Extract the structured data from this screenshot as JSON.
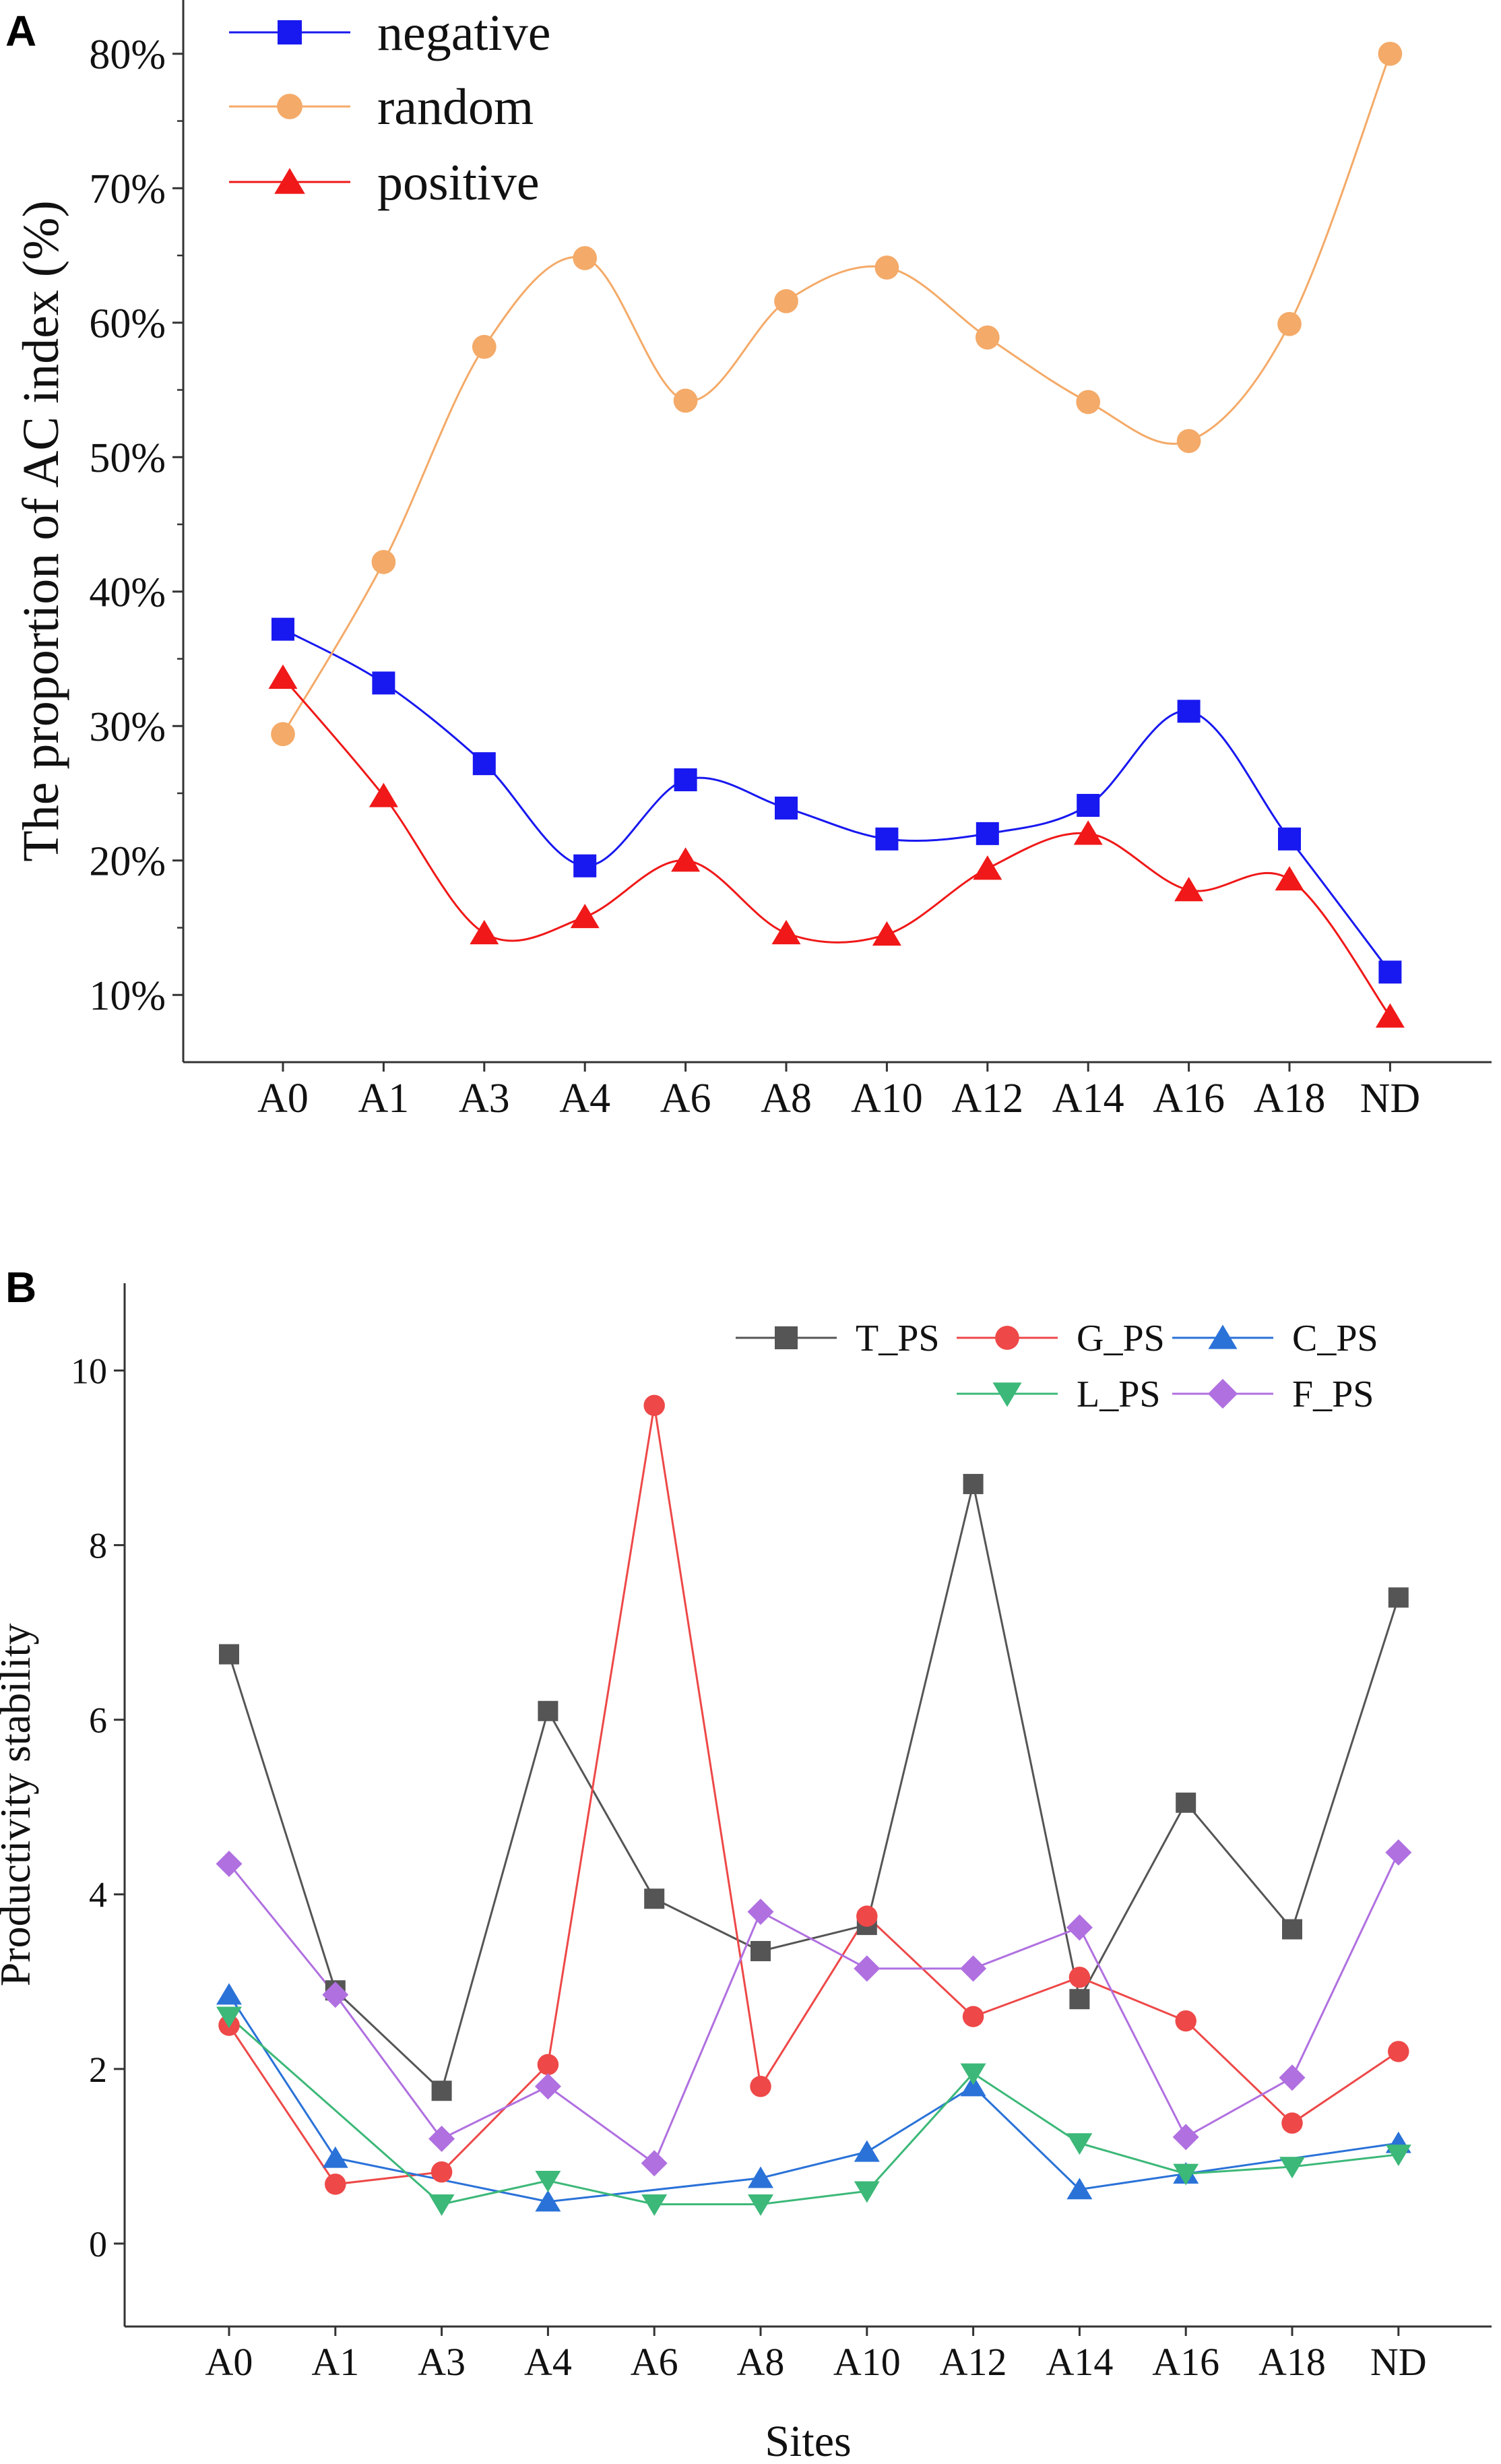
{
  "chart_data": [
    {
      "panel": "A",
      "type": "line",
      "categories": [
        "A0",
        "A1",
        "A3",
        "A4",
        "A6",
        "A8",
        "A10",
        "A12",
        "A14",
        "A16",
        "A18",
        "ND"
      ],
      "ylabel": "The proportion of  AC index (%)",
      "xlabel": "",
      "yticks": [
        "10%",
        "20%",
        "30%",
        "40%",
        "50%",
        "60%",
        "70%",
        "80%"
      ],
      "ylim": [
        5,
        84
      ],
      "smooth": true,
      "legend_position": "top-left",
      "series": [
        {
          "name": "negative",
          "marker": "square",
          "color": "#1818f0",
          "values": [
            37.2,
            33.2,
            27.2,
            19.6,
            26.0,
            23.9,
            21.6,
            22.0,
            24.1,
            31.1,
            21.6,
            11.7
          ]
        },
        {
          "name": "random",
          "marker": "circle",
          "color": "#f4aa68",
          "values": [
            29.4,
            42.2,
            58.2,
            64.8,
            54.2,
            61.6,
            64.1,
            58.9,
            54.1,
            51.2,
            59.9,
            80.0
          ]
        },
        {
          "name": "positive",
          "marker": "triangle-up",
          "color": "#f01818",
          "values": [
            33.6,
            24.8,
            14.6,
            15.8,
            20.0,
            14.6,
            14.5,
            19.4,
            22.0,
            17.8,
            18.6,
            8.4
          ]
        }
      ]
    },
    {
      "panel": "B",
      "type": "line",
      "categories": [
        "A0",
        "A1",
        "A3",
        "A4",
        "A6",
        "A8",
        "A10",
        "A12",
        "A14",
        "A16",
        "A18",
        "ND"
      ],
      "xlabel": "Sites",
      "ylabel": "Productivity stability",
      "yticks": [
        "0",
        "2",
        "4",
        "6",
        "8",
        "10"
      ],
      "ylim": [
        -0.95,
        11
      ],
      "smooth": false,
      "legend_position": "top-right",
      "series": [
        {
          "name": "T_PS",
          "marker": "square",
          "color": "#555555",
          "values": [
            6.75,
            2.9,
            1.75,
            6.1,
            3.95,
            3.35,
            3.65,
            8.7,
            2.8,
            5.05,
            3.6,
            7.4
          ]
        },
        {
          "name": "G_PS",
          "marker": "circle",
          "color": "#ee4848",
          "values": [
            2.5,
            0.68,
            0.82,
            2.05,
            9.6,
            1.8,
            3.75,
            2.6,
            3.05,
            2.55,
            1.38,
            2.2
          ]
        },
        {
          "name": "C_PS",
          "marker": "triangle-up",
          "color": "#2a72d8",
          "values": [
            2.85,
            0.98,
            null,
            0.48,
            null,
            0.75,
            1.05,
            1.8,
            0.62,
            0.8,
            null,
            1.15
          ]
        },
        {
          "name": "L_PS",
          "marker": "triangle-down",
          "color": "#3cb878",
          "values": [
            2.6,
            null,
            0.45,
            0.72,
            0.45,
            0.45,
            0.6,
            1.95,
            1.15,
            0.8,
            0.88,
            1.02
          ]
        },
        {
          "name": "F_PS",
          "marker": "diamond",
          "color": "#b070e0",
          "values": [
            4.35,
            2.85,
            1.2,
            1.8,
            0.92,
            3.8,
            3.15,
            3.15,
            3.62,
            1.22,
            1.9,
            4.48
          ]
        }
      ]
    }
  ],
  "panel_labels": {
    "a": "A",
    "b": "B"
  }
}
